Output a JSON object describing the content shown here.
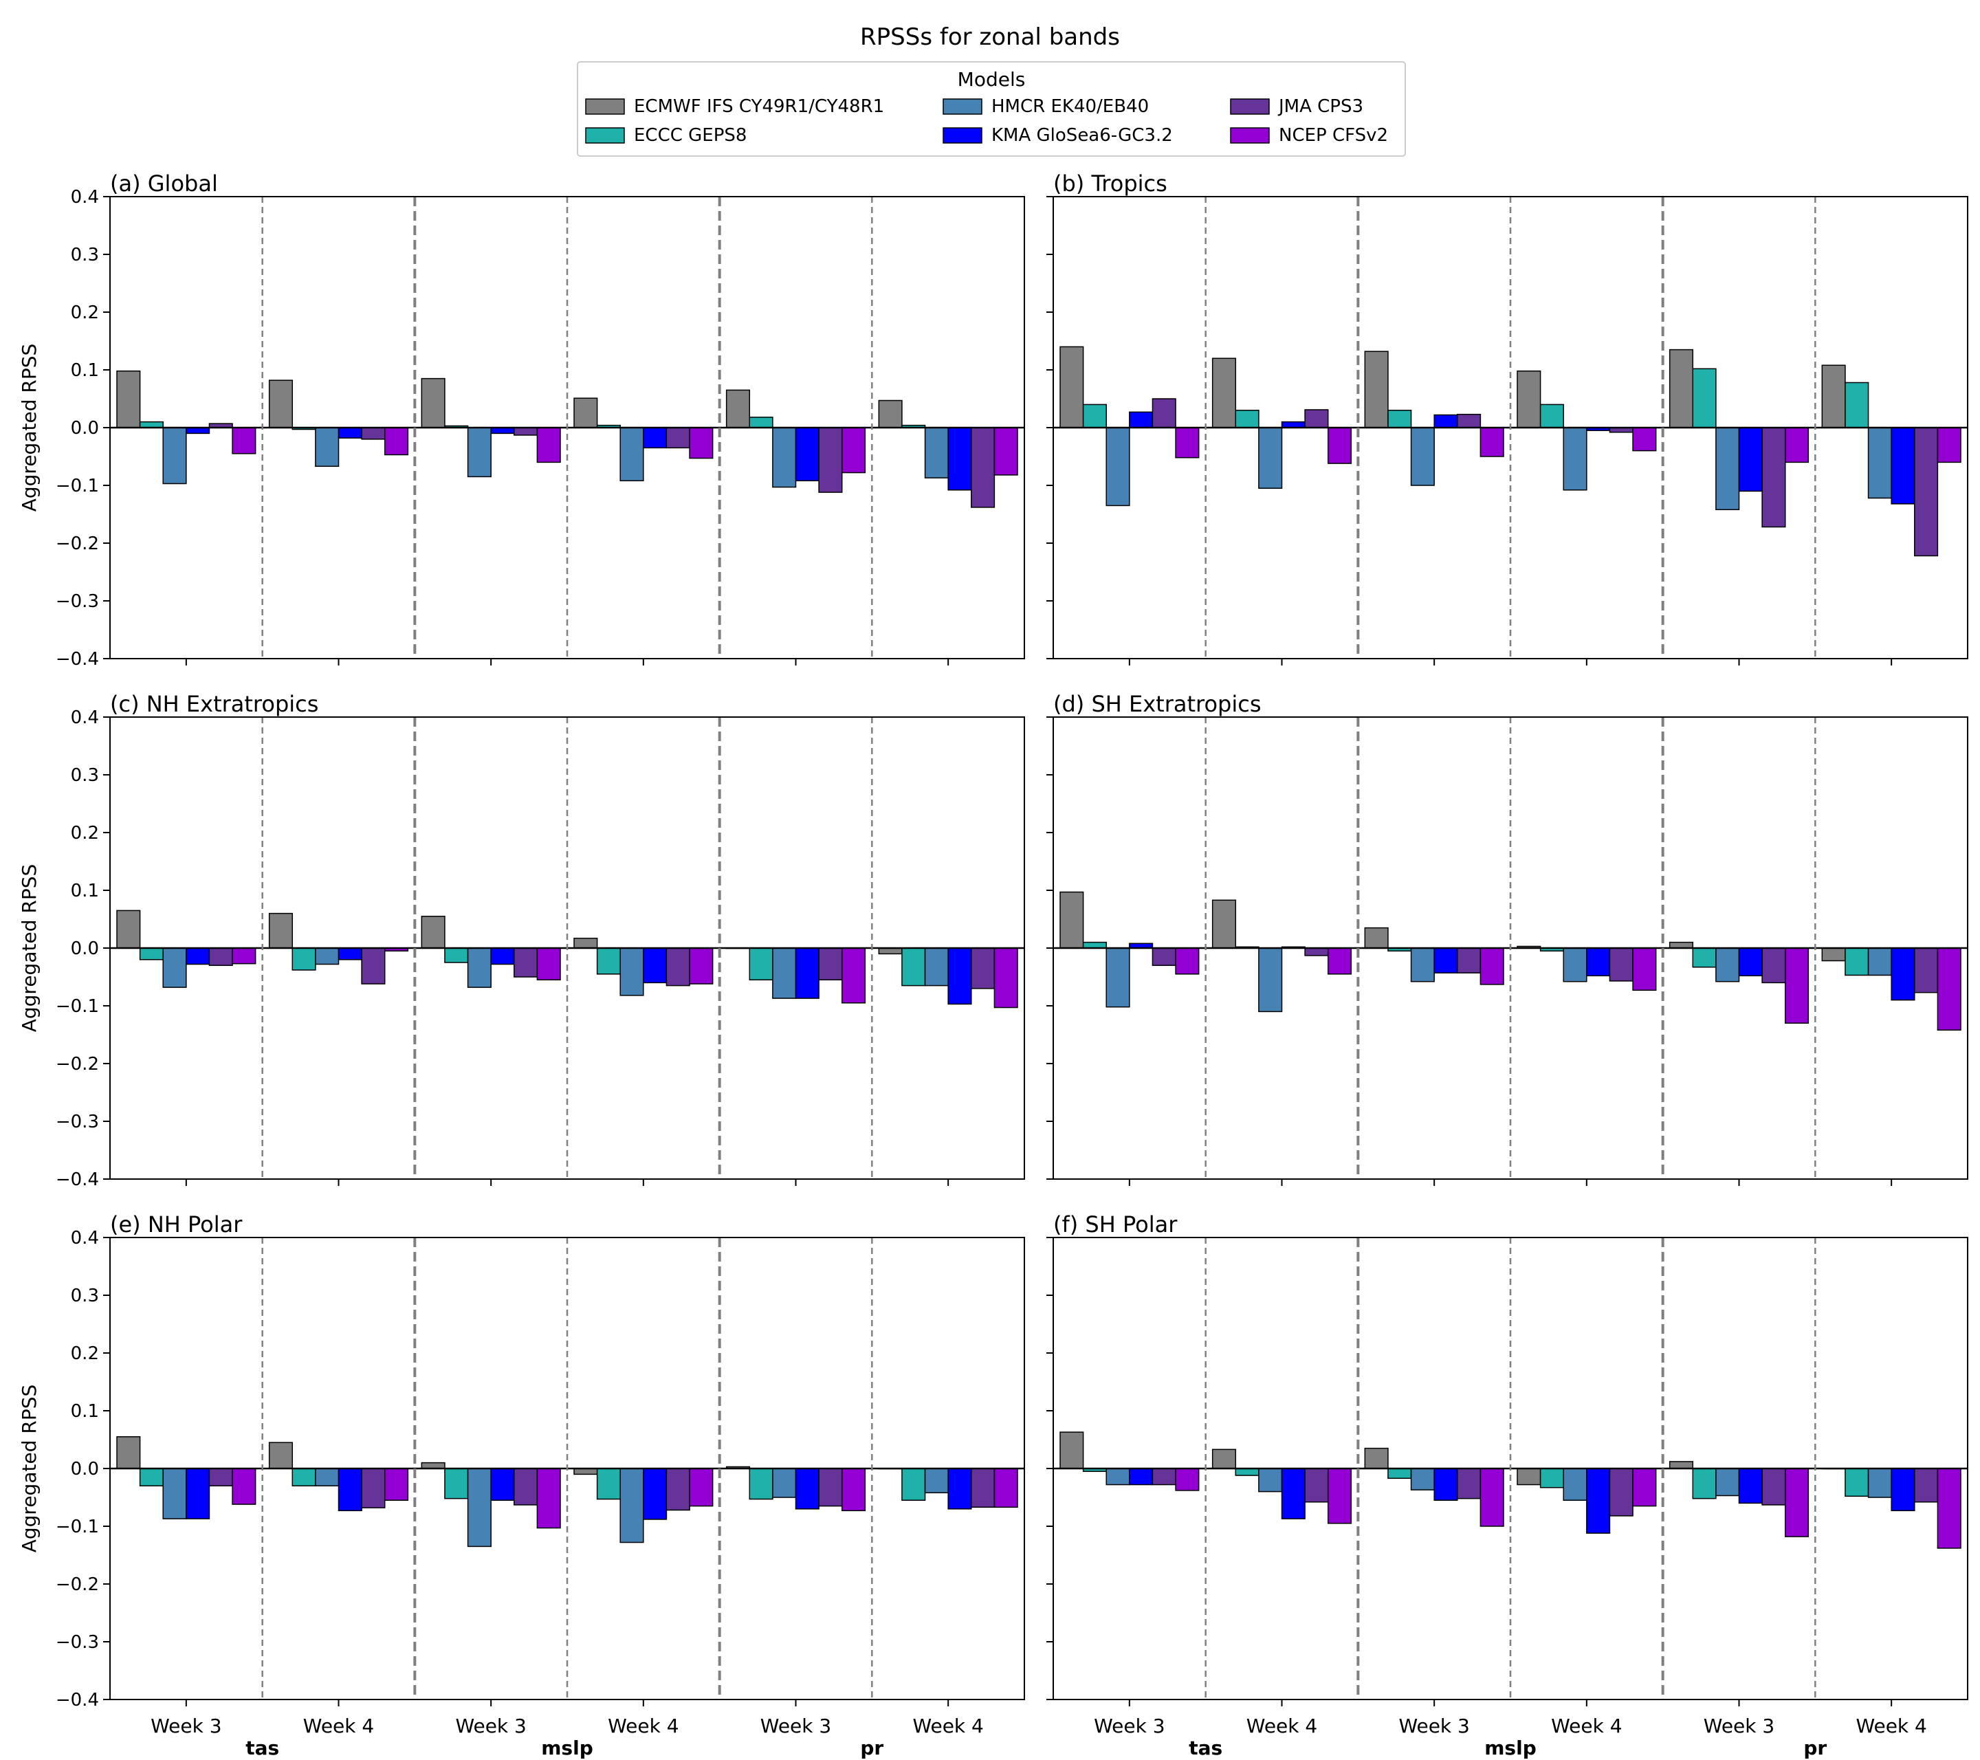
{
  "title": "RPSSs for zonal bands",
  "legend": {
    "title": "Models",
    "placement": "top-center",
    "columns": 3
  },
  "chart_data": {
    "type": "bar",
    "ylabel": "Aggregated RPSS",
    "ylim": [
      -0.4,
      0.4
    ],
    "yticks": [
      0.4,
      0.3,
      0.2,
      0.1,
      0.0,
      -0.1,
      -0.2,
      -0.3,
      -0.4
    ],
    "ytick_labels": [
      "0.4",
      "0.3",
      "0.2",
      "0.1",
      "0.0",
      "−0.1",
      "−0.2",
      "−0.3",
      "−0.4"
    ],
    "week_labels": [
      "Week 3",
      "Week 4"
    ],
    "variables": [
      "tas",
      "mslp",
      "pr"
    ],
    "series": [
      {
        "name": "ECMWF IFS CY49R1/CY48R1",
        "color": "#808080"
      },
      {
        "name": "ECCC GEPS8",
        "color": "#20b2aa"
      },
      {
        "name": "HMCR EK40/EB40",
        "color": "#4682b4"
      },
      {
        "name": "KMA GloSea6-GC3.2",
        "color": "#0000ff"
      },
      {
        "name": "JMA CPS3",
        "color": "#663399"
      },
      {
        "name": "NCEP CFSv2",
        "color": "#9400d3"
      }
    ],
    "panels": [
      {
        "title": "(a) Global",
        "groups": [
          [
            0.098,
            0.01,
            -0.097,
            -0.01,
            0.007,
            -0.045
          ],
          [
            0.082,
            -0.003,
            -0.067,
            -0.018,
            -0.02,
            -0.047
          ],
          [
            0.085,
            0.003,
            -0.085,
            -0.01,
            -0.013,
            -0.06
          ],
          [
            0.051,
            0.004,
            -0.092,
            -0.035,
            -0.035,
            -0.053
          ],
          [
            0.065,
            0.018,
            -0.103,
            -0.092,
            -0.112,
            -0.078
          ],
          [
            0.047,
            0.004,
            -0.087,
            -0.108,
            -0.138,
            -0.082
          ]
        ]
      },
      {
        "title": "(b) Tropics",
        "groups": [
          [
            0.14,
            0.04,
            -0.135,
            0.027,
            0.05,
            -0.052
          ],
          [
            0.12,
            0.03,
            -0.105,
            0.01,
            0.031,
            -0.062
          ],
          [
            0.132,
            0.03,
            -0.1,
            0.022,
            0.023,
            -0.05
          ],
          [
            0.098,
            0.04,
            -0.108,
            -0.005,
            -0.008,
            -0.04
          ],
          [
            0.135,
            0.102,
            -0.142,
            -0.11,
            -0.172,
            -0.06
          ],
          [
            0.108,
            0.078,
            -0.122,
            -0.132,
            -0.222,
            -0.06
          ]
        ]
      },
      {
        "title": "(c) NH Extratropics",
        "groups": [
          [
            0.065,
            -0.02,
            -0.068,
            -0.028,
            -0.03,
            -0.027
          ],
          [
            0.06,
            -0.038,
            -0.028,
            -0.02,
            -0.062,
            -0.005
          ],
          [
            0.055,
            -0.025,
            -0.068,
            -0.028,
            -0.05,
            -0.055
          ],
          [
            0.017,
            -0.045,
            -0.082,
            -0.06,
            -0.065,
            -0.062
          ],
          [
            0.0,
            -0.055,
            -0.087,
            -0.087,
            -0.055,
            -0.095
          ],
          [
            -0.01,
            -0.065,
            -0.065,
            -0.097,
            -0.07,
            -0.103
          ]
        ]
      },
      {
        "title": "(d) SH Extratropics",
        "groups": [
          [
            0.097,
            0.01,
            -0.102,
            0.008,
            -0.03,
            -0.045
          ],
          [
            0.083,
            0.002,
            -0.11,
            0.002,
            -0.013,
            -0.045
          ],
          [
            0.035,
            -0.005,
            -0.058,
            -0.043,
            -0.043,
            -0.063
          ],
          [
            0.003,
            -0.005,
            -0.058,
            -0.048,
            -0.057,
            -0.073
          ],
          [
            0.01,
            -0.033,
            -0.058,
            -0.048,
            -0.06,
            -0.13
          ],
          [
            -0.022,
            -0.047,
            -0.047,
            -0.09,
            -0.077,
            -0.142
          ]
        ]
      },
      {
        "title": "(e) NH Polar",
        "groups": [
          [
            0.055,
            -0.03,
            -0.087,
            -0.087,
            -0.03,
            -0.062
          ],
          [
            0.045,
            -0.03,
            -0.03,
            -0.073,
            -0.068,
            -0.055
          ],
          [
            0.01,
            -0.052,
            -0.135,
            -0.055,
            -0.063,
            -0.103
          ],
          [
            -0.01,
            -0.053,
            -0.128,
            -0.088,
            -0.072,
            -0.065
          ],
          [
            0.003,
            -0.053,
            -0.05,
            -0.07,
            -0.065,
            -0.073
          ],
          [
            0.0,
            -0.055,
            -0.042,
            -0.07,
            -0.067,
            -0.067
          ]
        ]
      },
      {
        "title": "(f) SH Polar",
        "groups": [
          [
            0.063,
            -0.005,
            -0.028,
            -0.028,
            -0.028,
            -0.038
          ],
          [
            0.033,
            -0.012,
            -0.04,
            -0.087,
            -0.058,
            -0.095
          ],
          [
            0.035,
            -0.017,
            -0.037,
            -0.055,
            -0.052,
            -0.1
          ],
          [
            -0.028,
            -0.033,
            -0.055,
            -0.112,
            -0.082,
            -0.065
          ],
          [
            0.012,
            -0.052,
            -0.047,
            -0.06,
            -0.063,
            -0.118
          ],
          [
            0.0,
            -0.048,
            -0.05,
            -0.073,
            -0.058,
            -0.138
          ]
        ]
      }
    ]
  }
}
